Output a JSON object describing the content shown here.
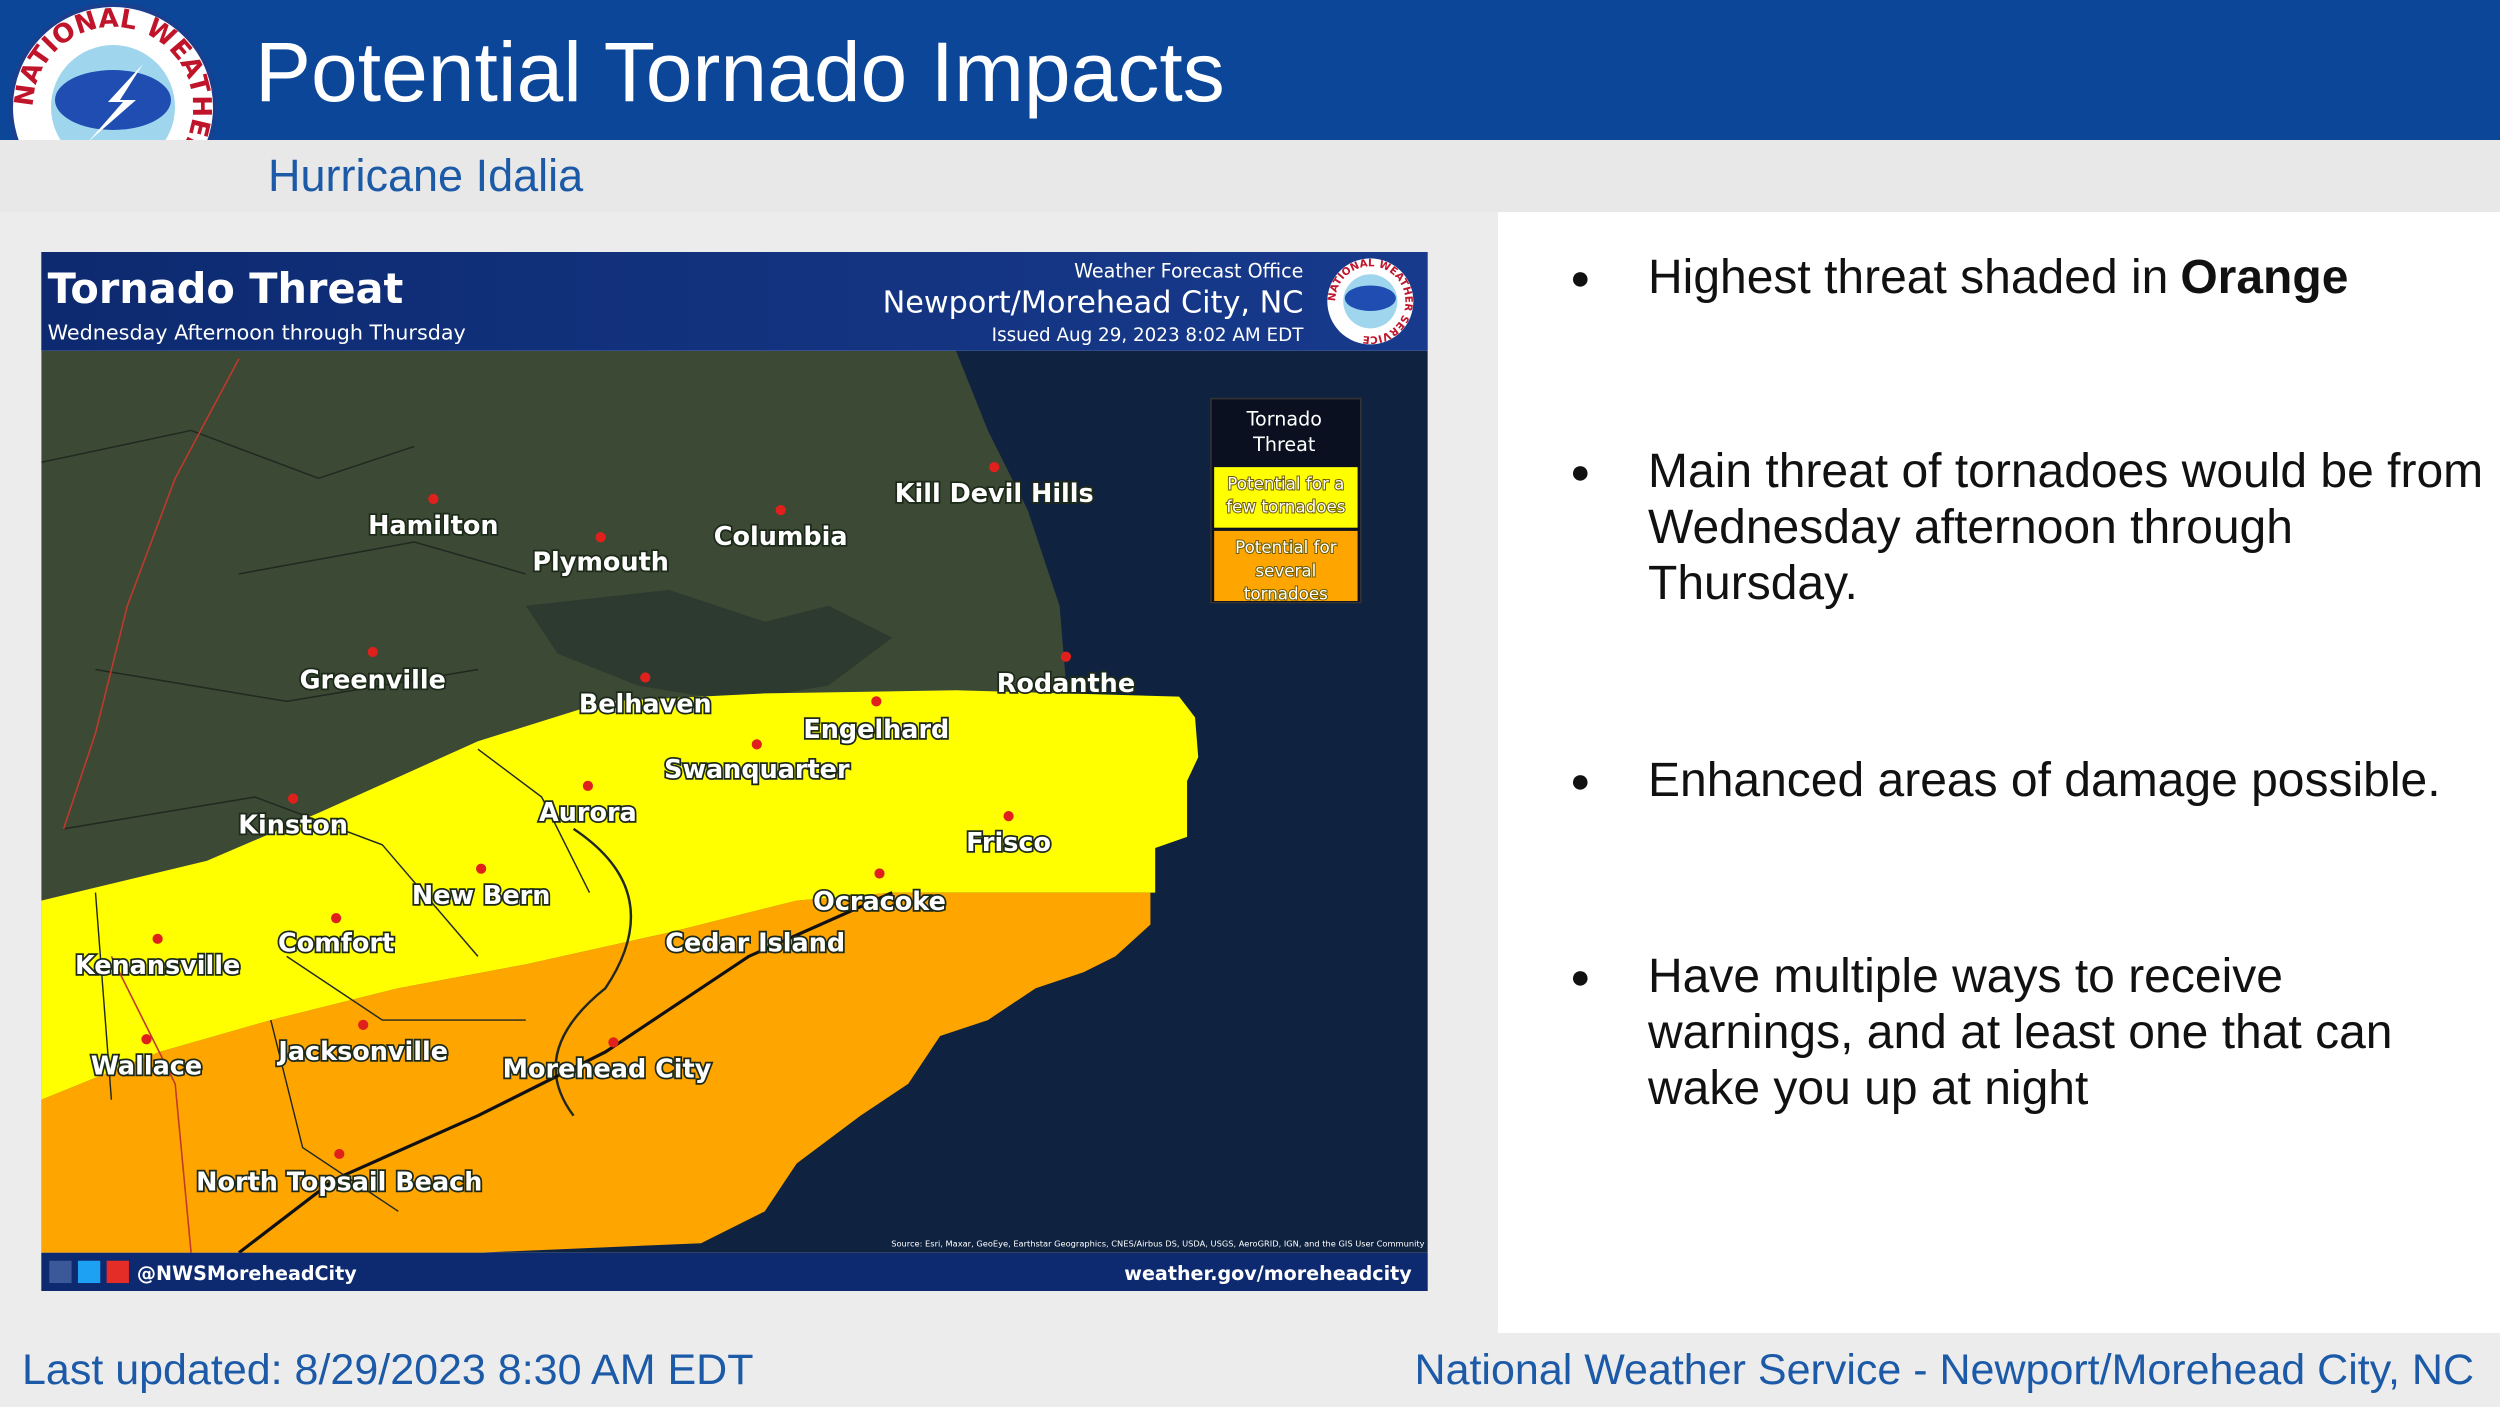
{
  "header": {
    "title": "Potential Tornado Impacts",
    "subtitle": "Hurricane Idalia",
    "logo_text": "NATIONAL WEATHER SERVICE"
  },
  "map": {
    "title": "Tornado Threat",
    "period": "Wednesday Afternoon through Thursday",
    "office": "Weather Forecast Office",
    "location": "Newport/Morehead City, NC",
    "issued": "Issued Aug 29, 2023 8:02 AM EDT",
    "legend": {
      "title": [
        "Tornado",
        "Threat"
      ],
      "items": [
        {
          "label": [
            "Potential for a",
            "few tornadoes"
          ],
          "color": "#ffff00"
        },
        {
          "label": [
            "Potential for",
            "several",
            "tornadoes"
          ],
          "color": "#ffa500"
        }
      ]
    },
    "cities": [
      "Hamilton",
      "Plymouth",
      "Columbia",
      "Kill Devil Hills",
      "Greenville",
      "Belhaven",
      "Rodanthe",
      "Engelhard",
      "Swanquarter",
      "Aurora",
      "Kinston",
      "Frisco",
      "New Bern",
      "Ocracoke",
      "Comfort",
      "Cedar Island",
      "Kenansville",
      "Jacksonville",
      "Wallace",
      "Morehead City",
      "North Topsail Beach"
    ],
    "source": "Source: Esri, Maxar, GeoEye, Earthstar Geographics, CNES/Airbus DS, USDA, USGS, AeroGRID, IGN, and the GIS User Community",
    "social": "@NWSMoreheadCity",
    "website": "weather.gov/moreheadcity"
  },
  "bullets": [
    {
      "text": "Highest threat shaded in",
      "emphasis": "Orange"
    },
    {
      "text": "Main threat of tornadoes would be from Wednesday afternoon through Thursday."
    },
    {
      "text": "Enhanced areas of damage possible."
    },
    {
      "text": "Have multiple ways to receive warnings, and at least one that can wake you up at night"
    }
  ],
  "footer": {
    "updated": "Last updated: 8/29/2023 8:30 AM EDT",
    "office": "National Weather Service - Newport/Morehead City, NC"
  }
}
